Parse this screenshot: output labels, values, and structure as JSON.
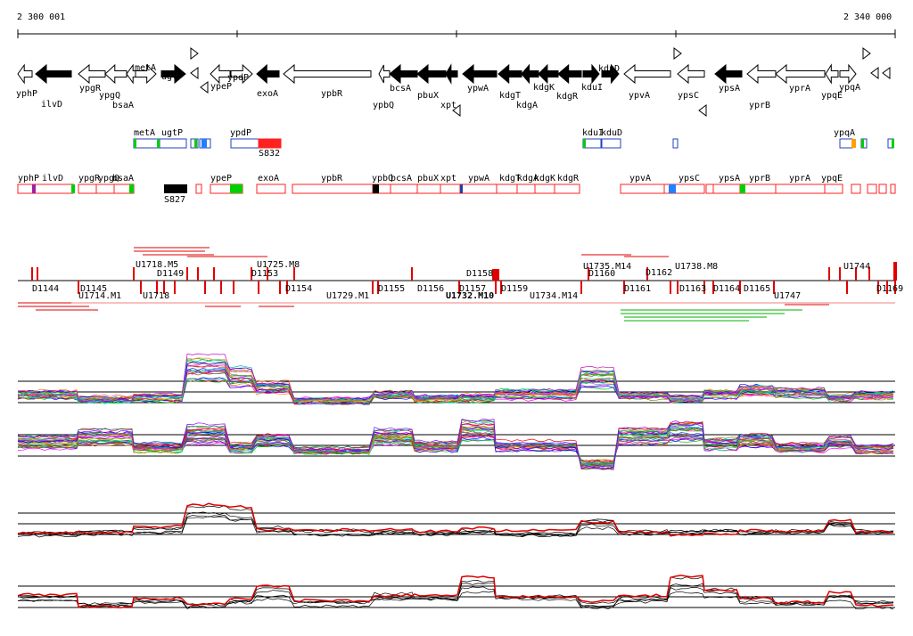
{
  "ruler": {
    "start": "2 300 001",
    "end": "2 340 000"
  },
  "genes_top": [
    {
      "name": "yphP",
      "dir": "L",
      "fill": "white"
    },
    {
      "name": "ilvD",
      "dir": "L",
      "fill": "black"
    },
    {
      "name": "ypgR",
      "dir": "L",
      "fill": "white"
    },
    {
      "name": "ypgQ",
      "dir": "L",
      "fill": "white"
    },
    {
      "name": "bsaA",
      "dir": "L",
      "fill": "white"
    },
    {
      "name": "metA",
      "dir": "R",
      "fill": "white"
    },
    {
      "name": "ugtP",
      "dir": "R",
      "fill": "black"
    },
    {
      "name": "ypeP",
      "dir": "L",
      "fill": "white"
    },
    {
      "name": "ypdP",
      "dir": "R",
      "fill": "white"
    },
    {
      "name": "exoA",
      "dir": "L",
      "fill": "black"
    },
    {
      "name": "ypbR",
      "dir": "L",
      "fill": "white"
    },
    {
      "name": "ypbQ",
      "dir": "L",
      "fill": "white"
    },
    {
      "name": "bcsA",
      "dir": "L",
      "fill": "black"
    },
    {
      "name": "pbuX",
      "dir": "L",
      "fill": "black"
    },
    {
      "name": "xpt",
      "dir": "L",
      "fill": "black"
    },
    {
      "name": "ypwA",
      "dir": "L",
      "fill": "black"
    },
    {
      "name": "kdgT",
      "dir": "L",
      "fill": "black"
    },
    {
      "name": "kdgA",
      "dir": "L",
      "fill": "black"
    },
    {
      "name": "kdgK",
      "dir": "L",
      "fill": "black"
    },
    {
      "name": "kdgR",
      "dir": "L",
      "fill": "black"
    },
    {
      "name": "kduI",
      "dir": "R",
      "fill": "black"
    },
    {
      "name": "kduD",
      "dir": "R",
      "fill": "black"
    },
    {
      "name": "ypvA",
      "dir": "L",
      "fill": "white"
    },
    {
      "name": "ypsC",
      "dir": "L",
      "fill": "white"
    },
    {
      "name": "ypsA",
      "dir": "L",
      "fill": "black"
    },
    {
      "name": "yprB",
      "dir": "L",
      "fill": "white"
    },
    {
      "name": "yprA",
      "dir": "L",
      "fill": "white"
    },
    {
      "name": "ypqE",
      "dir": "L",
      "fill": "white"
    },
    {
      "name": "ypqA",
      "dir": "R",
      "fill": "white"
    }
  ],
  "operons_upper": [
    {
      "label": "metA"
    },
    {
      "label": "ugtP"
    },
    {
      "label": "ypdP"
    },
    {
      "label": "S832"
    },
    {
      "label": "kduI"
    },
    {
      "label": "kduD"
    },
    {
      "label": "ypqA"
    }
  ],
  "operons_lower": [
    {
      "label": "yphP"
    },
    {
      "label": "ilvD"
    },
    {
      "label": "ypgR"
    },
    {
      "label": "ypgQ"
    },
    {
      "label": "bsaA"
    },
    {
      "label": "S827"
    },
    {
      "label": "ypeP"
    },
    {
      "label": "exoA"
    },
    {
      "label": "ypbR"
    },
    {
      "label": "ypbQ"
    },
    {
      "label": "bcsA"
    },
    {
      "label": "pbuX"
    },
    {
      "label": "xpt"
    },
    {
      "label": "ypwA"
    },
    {
      "label": "kdgT"
    },
    {
      "label": "kdgA"
    },
    {
      "label": "kdgK"
    },
    {
      "label": "kdgR"
    },
    {
      "label": "ypvA"
    },
    {
      "label": "ypsC"
    },
    {
      "label": "ypsA"
    },
    {
      "label": "yprB"
    },
    {
      "label": "yprA"
    },
    {
      "label": "ypqE"
    }
  ],
  "segments_above": [
    {
      "label": "U1718.M5"
    },
    {
      "label": "D1149"
    },
    {
      "label": "U1725.M8"
    },
    {
      "label": "D1153"
    },
    {
      "label": "D1158"
    },
    {
      "label": "U1735.M14"
    },
    {
      "label": "D1160"
    },
    {
      "label": "D1162"
    },
    {
      "label": "U1738.M8"
    },
    {
      "label": "U1744"
    }
  ],
  "segments_below": [
    {
      "label": "D1144"
    },
    {
      "label": "D1145"
    },
    {
      "label": "U1714.M1"
    },
    {
      "label": "U1718"
    },
    {
      "label": "D1154"
    },
    {
      "label": "U1729.M1"
    },
    {
      "label": "D1155"
    },
    {
      "label": "D1156"
    },
    {
      "label": "D1157"
    },
    {
      "label": "D1159"
    },
    {
      "label": "U1732.M10"
    },
    {
      "label": "U1734.M14"
    },
    {
      "label": "D1161"
    },
    {
      "label": "D1163"
    },
    {
      "label": "D1164"
    },
    {
      "label": "D1165"
    },
    {
      "label": "U1747"
    },
    {
      "label": "D1169"
    }
  ],
  "colors": {
    "sense": "#e00000",
    "highlight_green": "#00d000",
    "highlight_blue": "#2080ff",
    "operon_red": "#ff2020"
  }
}
